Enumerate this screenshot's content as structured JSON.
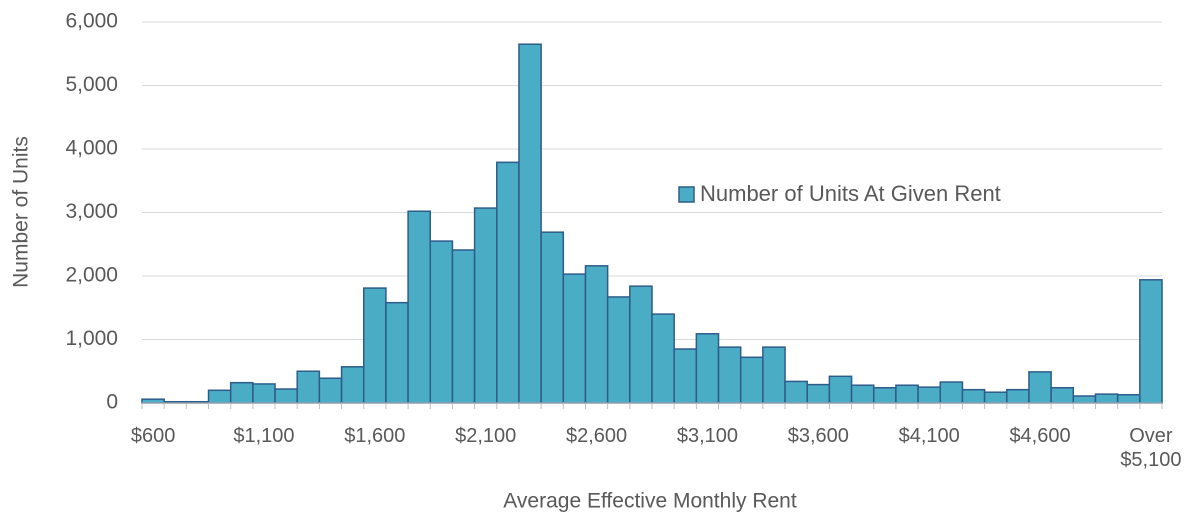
{
  "chart_data": {
    "type": "bar",
    "xlabel": "Average Effective Monthly Rent",
    "ylabel": "Number of Units",
    "categories": [
      "$600",
      null,
      null,
      null,
      null,
      "$1,100",
      null,
      null,
      null,
      null,
      "$1,600",
      null,
      null,
      null,
      null,
      "$2,100",
      null,
      null,
      null,
      null,
      "$2,600",
      null,
      null,
      null,
      null,
      "$3,100",
      null,
      null,
      null,
      null,
      "$3,600",
      null,
      null,
      null,
      null,
      "$4,100",
      null,
      null,
      null,
      null,
      "$4,600",
      null,
      null,
      null,
      null,
      "Over $5,100"
    ],
    "series": [
      {
        "name": "Number of Units At Given Rent",
        "color": "#4bacc6",
        "edgecolor": "#2e5c8a",
        "values": [
          60,
          20,
          20,
          200,
          320,
          300,
          220,
          500,
          390,
          570,
          1810,
          1580,
          3020,
          2550,
          2410,
          3070,
          3790,
          5650,
          2690,
          2030,
          2160,
          1670,
          1840,
          1400,
          850,
          1090,
          880,
          720,
          880,
          340,
          290,
          420,
          280,
          240,
          280,
          250,
          330,
          210,
          170,
          210,
          490,
          240,
          110,
          140,
          130,
          1940
        ]
      }
    ],
    "ylim": [
      0,
      6000
    ],
    "yticks": [
      0,
      {
        "value": 1000,
        "label": "1,000"
      },
      {
        "value": 2000,
        "label": "2,000"
      },
      {
        "value": 3000,
        "label": "3,000"
      },
      {
        "value": 4000,
        "label": "4,000"
      },
      {
        "value": 5000,
        "label": "5,000"
      },
      {
        "value": 6000,
        "label": "6,000"
      }
    ],
    "grid": true,
    "legend": "right"
  }
}
